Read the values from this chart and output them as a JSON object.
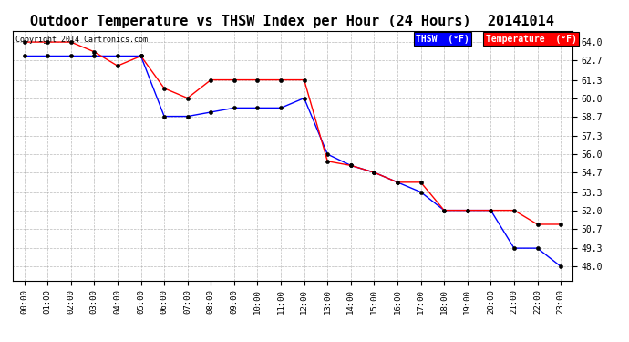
{
  "title": "Outdoor Temperature vs THSW Index per Hour (24 Hours)  20141014",
  "copyright": "Copyright 2014 Cartronics.com",
  "x_labels": [
    "00:00",
    "01:00",
    "02:00",
    "03:00",
    "04:00",
    "05:00",
    "06:00",
    "07:00",
    "08:00",
    "09:00",
    "10:00",
    "11:00",
    "12:00",
    "13:00",
    "14:00",
    "15:00",
    "16:00",
    "17:00",
    "18:00",
    "19:00",
    "20:00",
    "21:00",
    "22:00",
    "23:00"
  ],
  "thsw": [
    63.0,
    63.0,
    63.0,
    63.0,
    63.0,
    63.0,
    58.7,
    58.7,
    59.0,
    59.3,
    59.3,
    59.3,
    60.0,
    56.0,
    55.2,
    54.7,
    54.0,
    53.3,
    52.0,
    52.0,
    52.0,
    49.3,
    49.3,
    48.0
  ],
  "temperature": [
    64.0,
    64.0,
    64.0,
    63.3,
    62.3,
    63.0,
    60.7,
    60.0,
    61.3,
    61.3,
    61.3,
    61.3,
    61.3,
    55.5,
    55.2,
    54.7,
    54.0,
    54.0,
    52.0,
    52.0,
    52.0,
    52.0,
    51.0,
    51.0
  ],
  "thsw_color": "#0000ff",
  "temp_color": "#ff0000",
  "bg_color": "#ffffff",
  "grid_color": "#aaaaaa",
  "ylim_min": 47.0,
  "ylim_max": 64.8,
  "yticks": [
    48.0,
    49.3,
    50.7,
    52.0,
    53.3,
    54.7,
    56.0,
    57.3,
    58.7,
    60.0,
    61.3,
    62.7,
    64.0
  ],
  "title_fontsize": 11,
  "copyright_fontsize": 6,
  "legend_thsw_label": "THSW  (°F)",
  "legend_temp_label": "Temperature  (°F)"
}
